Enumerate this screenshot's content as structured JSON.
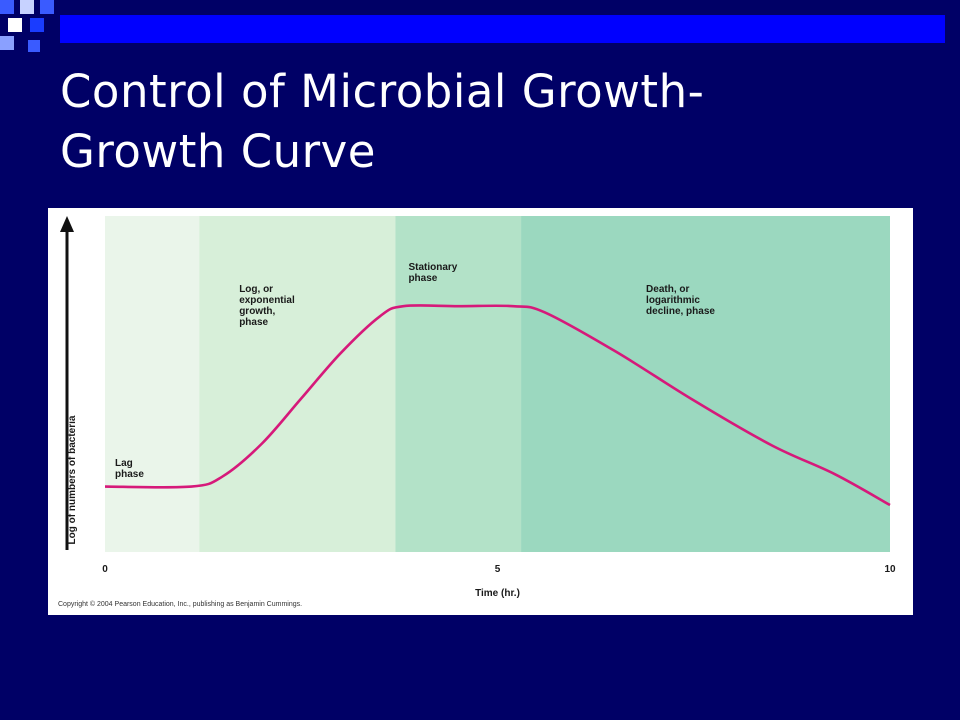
{
  "slide": {
    "title_line1": "Control of Microbial Growth-",
    "title_line2": "Growth Curve",
    "background_color": "#000066",
    "accent_color": "#0000ff"
  },
  "figure": {
    "copyright": "Copyright © 2004 Pearson Education, Inc., publishing as Benjamin Cummings."
  },
  "chart_data": {
    "type": "line",
    "title": "",
    "xlabel": "Time (hr.)",
    "ylabel": "Log of numbers of bacteria",
    "xlim": [
      0,
      10
    ],
    "x_ticks": [
      0,
      5,
      10
    ],
    "x_tick_labels": [
      "0",
      "5",
      "10"
    ],
    "line_color": "#d6197a",
    "phases": [
      {
        "label_lines": [
          "Lag",
          "phase"
        ],
        "x_start": 0,
        "x_end": 1.2,
        "color": "#eaf5ea"
      },
      {
        "label_lines": [
          "Log, or",
          "exponential",
          "growth,",
          "phase"
        ],
        "x_start": 1.2,
        "x_end": 3.7,
        "color": "#d7efd9"
      },
      {
        "label_lines": [
          "Stationary",
          "phase"
        ],
        "x_start": 3.7,
        "x_end": 5.3,
        "color": "#b3e2c8"
      },
      {
        "label_lines": [
          "Death, or",
          "logarithmic",
          "decline, phase"
        ],
        "x_start": 5.3,
        "x_end": 10,
        "color": "#9bd8bf"
      }
    ],
    "curve": {
      "x": [
        0,
        1.1,
        1.5,
        2.0,
        2.5,
        3.0,
        3.5,
        3.8,
        4.5,
        5.2,
        5.6,
        6.5,
        7.5,
        8.5,
        9.3,
        10.0
      ],
      "y": [
        0.09,
        0.09,
        0.14,
        0.3,
        0.52,
        0.74,
        0.92,
        0.97,
        0.97,
        0.97,
        0.94,
        0.75,
        0.51,
        0.29,
        0.15,
        0.0
      ]
    }
  }
}
